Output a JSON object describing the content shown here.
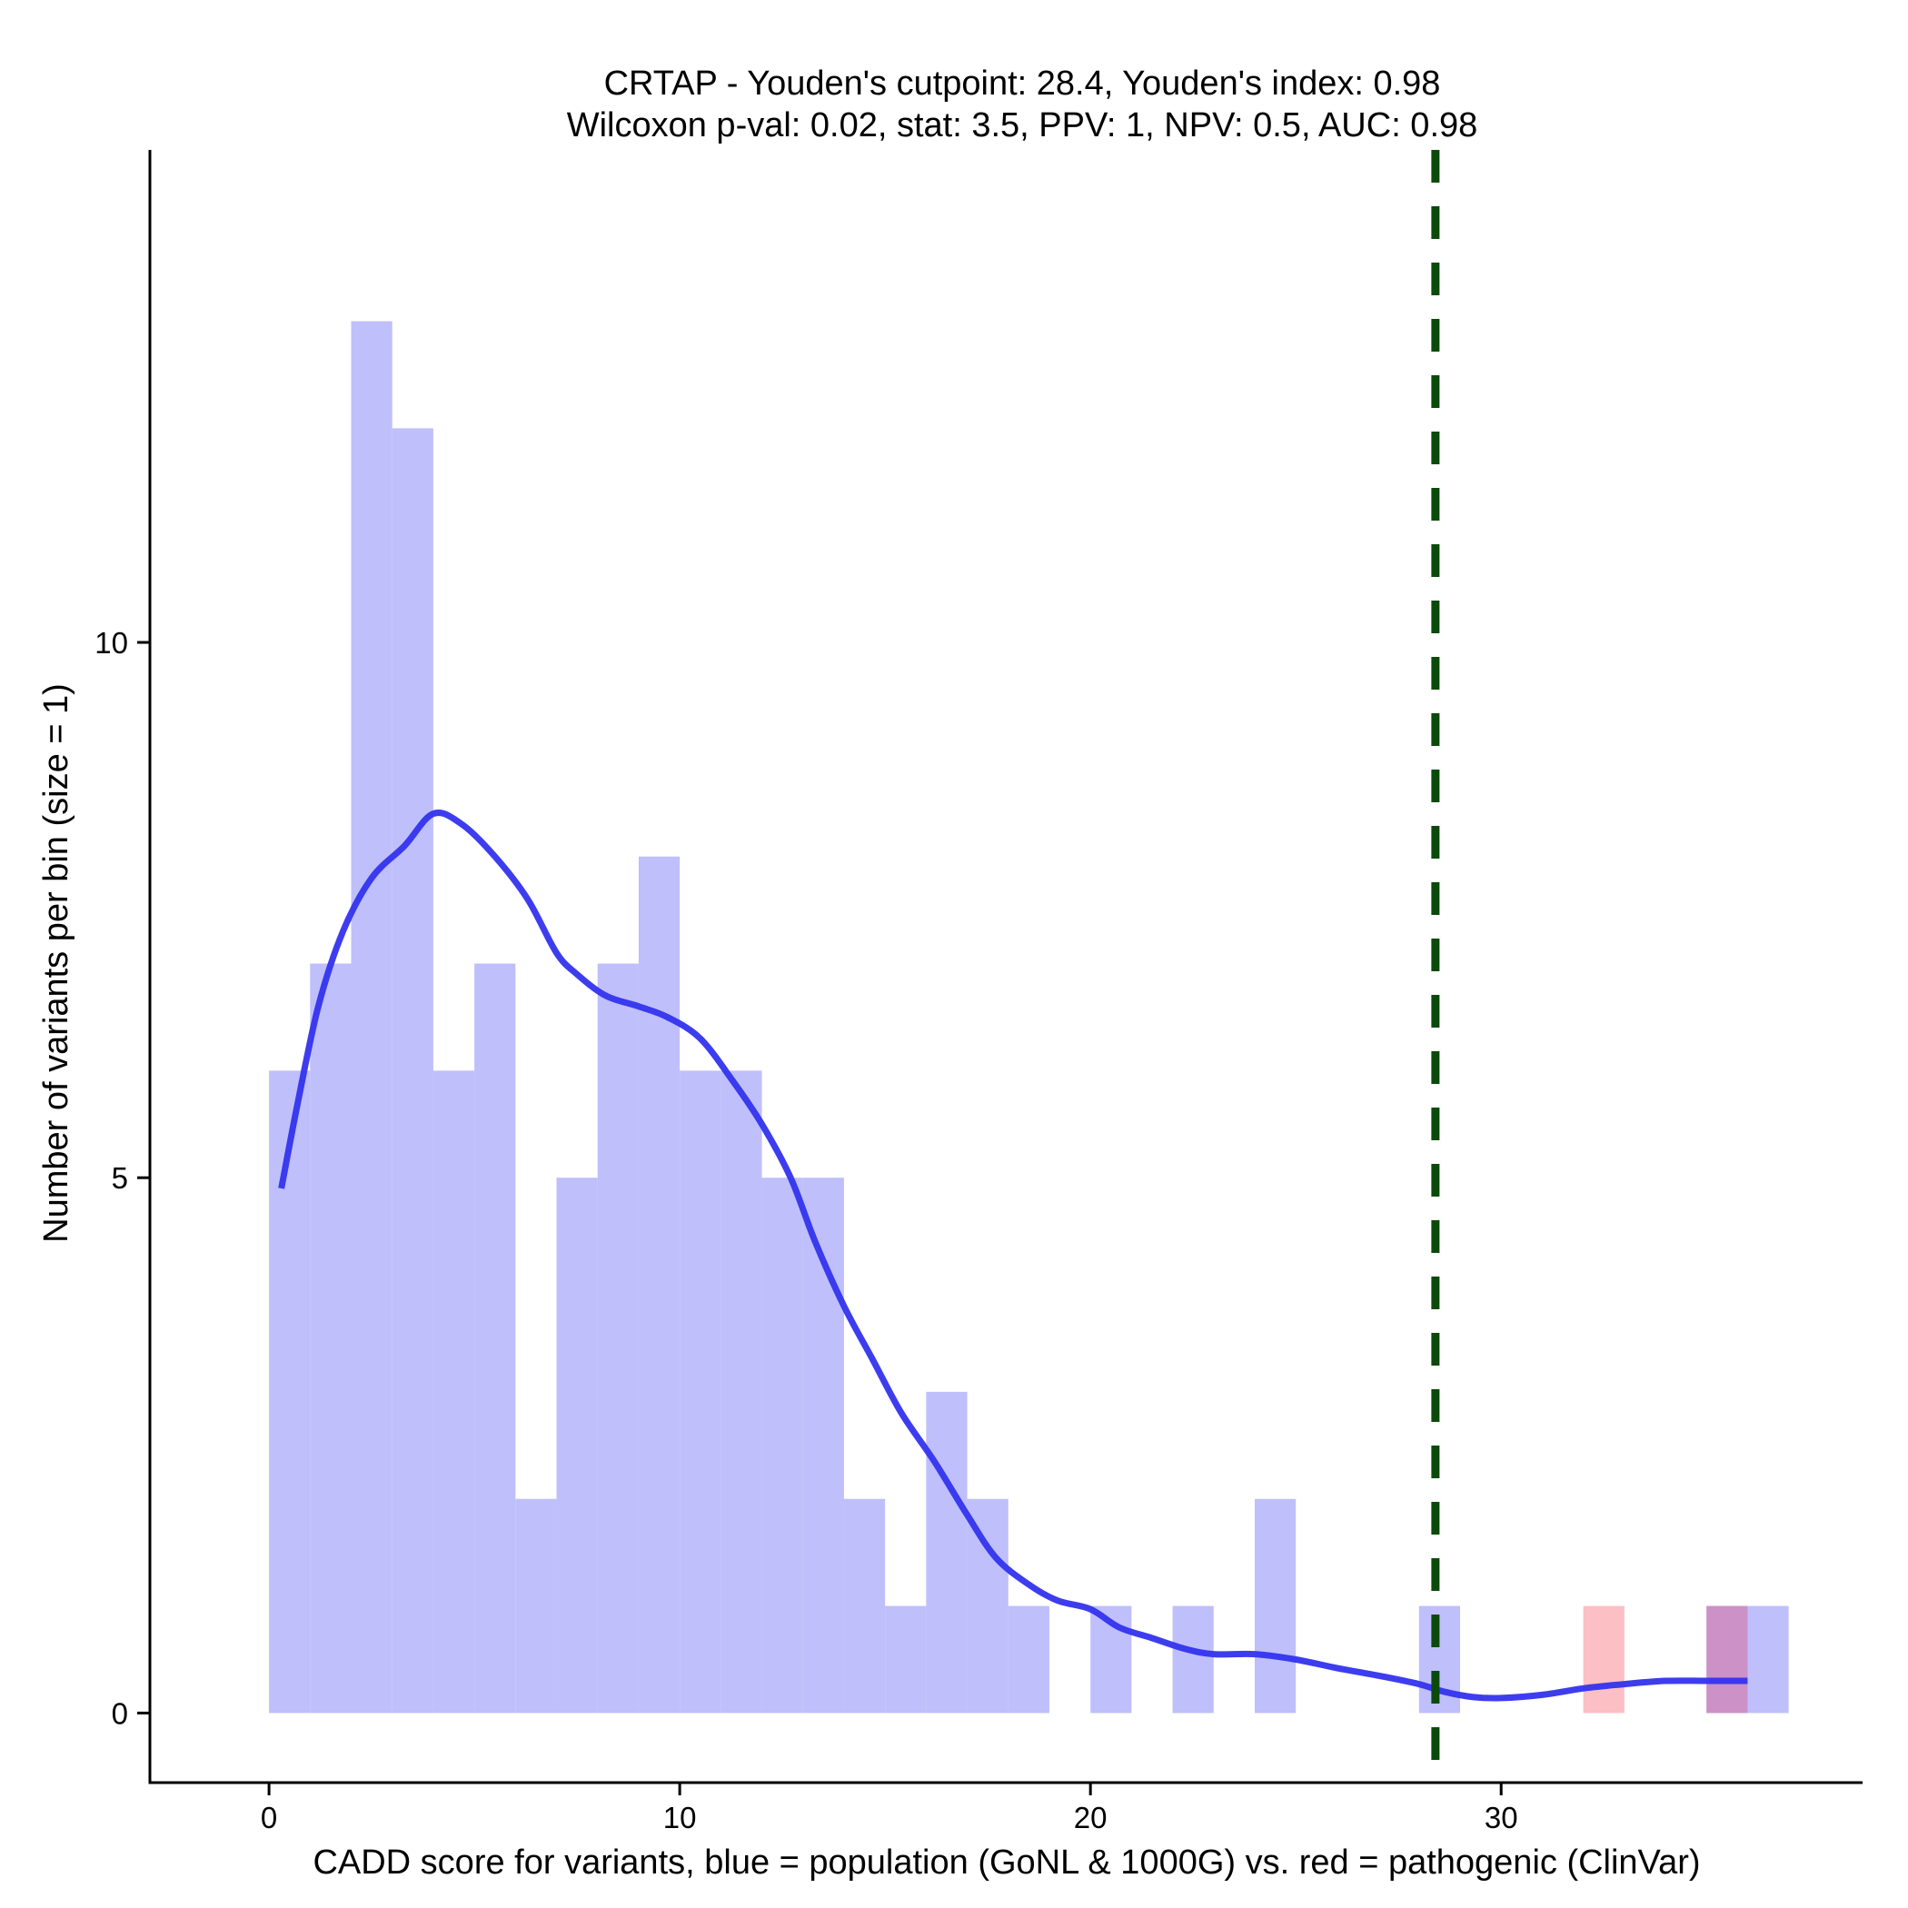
{
  "chart_data": {
    "type": "histogram",
    "title_line1": "CRTAP - Youden's cutpoint: 28.4, Youden's index: 0.98",
    "title_line2": "Wilcoxon p-val: 0.02, stat: 3.5, PPV: 1, NPV: 0.5, AUC: 0.98",
    "xlabel": "CADD score for variants, blue = population (GoNL & 1000G) vs. red = pathogenic (ClinVar)",
    "ylabel": "Number of variants per bin (size = 1)",
    "xlim": [
      -2.9,
      38.8
    ],
    "ylim": [
      -0.65,
      14.6
    ],
    "x_ticks": [
      0,
      10,
      20,
      30
    ],
    "x_tick_labels": [
      "0",
      "10",
      "20",
      "30"
    ],
    "y_ticks": [
      0,
      5,
      10
    ],
    "y_tick_labels": [
      "0",
      "5",
      "10"
    ],
    "bin_width": 1,
    "cutpoint": 28.4,
    "colors": {
      "population": "#bfbffb",
      "pathogenic": "#fbbfc4",
      "overlap": "#cc91c6",
      "density": "#3333ee",
      "cutpoint": "#0b4a0b"
    },
    "series": [
      {
        "name": "population",
        "bins": [
          [
            0,
            6
          ],
          [
            1,
            7
          ],
          [
            2,
            13
          ],
          [
            3,
            12
          ],
          [
            4,
            6
          ],
          [
            5,
            7
          ],
          [
            6,
            2
          ],
          [
            7,
            5
          ],
          [
            8,
            7
          ],
          [
            9,
            8
          ],
          [
            10,
            6
          ],
          [
            11,
            6
          ],
          [
            12,
            5
          ],
          [
            13,
            5
          ],
          [
            14,
            2
          ],
          [
            15,
            1
          ],
          [
            16,
            3
          ],
          [
            17,
            2
          ],
          [
            18,
            1
          ],
          [
            20,
            1
          ],
          [
            22,
            1
          ],
          [
            24,
            2
          ],
          [
            28,
            1
          ],
          [
            35,
            1
          ],
          [
            36,
            1
          ]
        ]
      },
      {
        "name": "pathogenic",
        "bins": [
          [
            32,
            1
          ],
          [
            35,
            1
          ]
        ]
      }
    ],
    "density_curve": [
      [
        0.3,
        4.9
      ],
      [
        0.7,
        5.7
      ],
      [
        1.2,
        6.6
      ],
      [
        1.8,
        7.3
      ],
      [
        2.5,
        7.8
      ],
      [
        3.3,
        8.1
      ],
      [
        4.0,
        8.4
      ],
      [
        4.7,
        8.3
      ],
      [
        5.5,
        8.0
      ],
      [
        6.3,
        7.6
      ],
      [
        7.0,
        7.1
      ],
      [
        7.5,
        6.9
      ],
      [
        8.2,
        6.7
      ],
      [
        9.0,
        6.6
      ],
      [
        9.7,
        6.5
      ],
      [
        10.5,
        6.3
      ],
      [
        11.3,
        5.9
      ],
      [
        12.0,
        5.5
      ],
      [
        12.7,
        5.0
      ],
      [
        13.3,
        4.4
      ],
      [
        14.0,
        3.8
      ],
      [
        14.7,
        3.3
      ],
      [
        15.4,
        2.8
      ],
      [
        16.2,
        2.35
      ],
      [
        17.0,
        1.85
      ],
      [
        17.7,
        1.45
      ],
      [
        18.5,
        1.2
      ],
      [
        19.2,
        1.05
      ],
      [
        20.0,
        0.97
      ],
      [
        20.7,
        0.8
      ],
      [
        21.5,
        0.7
      ],
      [
        22.3,
        0.6
      ],
      [
        23.0,
        0.55
      ],
      [
        24.0,
        0.55
      ],
      [
        25.0,
        0.5
      ],
      [
        26.0,
        0.42
      ],
      [
        27.0,
        0.35
      ],
      [
        28.0,
        0.27
      ],
      [
        28.6,
        0.2
      ],
      [
        29.3,
        0.15
      ],
      [
        30.0,
        0.14
      ],
      [
        31.0,
        0.17
      ],
      [
        32.0,
        0.23
      ],
      [
        33.0,
        0.27
      ],
      [
        34.0,
        0.3
      ],
      [
        35.0,
        0.3
      ],
      [
        36.0,
        0.3
      ]
    ]
  }
}
